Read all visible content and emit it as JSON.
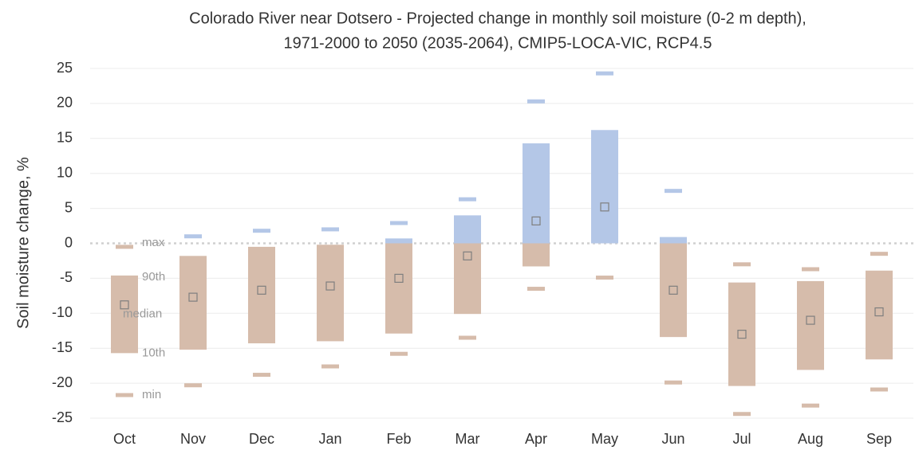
{
  "chart_data": {
    "type": "range",
    "title": "Colorado River near Dotsero - Projected change in monthly soil moisture (0-2 m depth),",
    "subtitle": "1971-2000 to 2050 (2035-2064), CMIP5-LOCA-VIC, RCP4.5",
    "y_label": "Soil moisture change, %",
    "categories": [
      "Oct",
      "Nov",
      "Dec",
      "Jan",
      "Feb",
      "Mar",
      "Apr",
      "May",
      "Jun",
      "Jul",
      "Aug",
      "Sep"
    ],
    "series": [
      {
        "name": "max",
        "values": [
          -0.5,
          1.0,
          1.8,
          2.0,
          2.9,
          6.3,
          20.3,
          24.3,
          7.5,
          -3.0,
          -3.7,
          -1.5
        ]
      },
      {
        "name": "90th",
        "values": [
          -4.6,
          -1.8,
          -0.5,
          -0.2,
          0.7,
          4.0,
          14.3,
          16.2,
          0.9,
          -5.6,
          -5.4,
          -3.9
        ]
      },
      {
        "name": "median",
        "values": [
          -8.8,
          -7.7,
          -6.7,
          -6.1,
          -5.0,
          -1.8,
          3.2,
          5.2,
          -6.7,
          -13.0,
          -11.0,
          -9.8
        ]
      },
      {
        "name": "10th",
        "values": [
          -15.7,
          -15.2,
          -14.3,
          -14.0,
          -12.9,
          -10.1,
          -3.3,
          0,
          -13.4,
          -20.4,
          -18.1,
          -16.6
        ]
      },
      {
        "name": "min",
        "values": [
          -21.7,
          -20.3,
          -18.8,
          -17.6,
          -15.8,
          -13.5,
          -6.5,
          -4.9,
          -19.9,
          -24.4,
          -23.2,
          -20.9
        ]
      }
    ],
    "positive_color": "#b4c7e7",
    "negative_color": "#d6bcab",
    "median_color": "#7f7f7f",
    "ylim": [
      -25,
      25
    ],
    "yticks": [
      -25,
      -20,
      -15,
      -10,
      -5,
      0,
      5,
      10,
      15,
      20,
      25
    ],
    "grid": true
  }
}
